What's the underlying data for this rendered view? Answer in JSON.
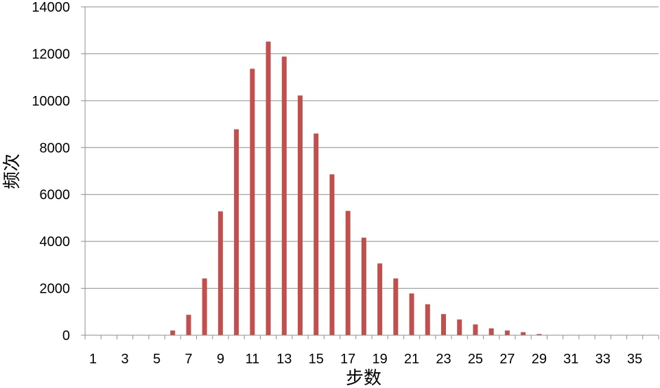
{
  "chart_data": {
    "type": "bar",
    "xlabel": "步数",
    "ylabel": "频次",
    "ylim": [
      0,
      14000
    ],
    "yticks": [
      0,
      2000,
      4000,
      6000,
      8000,
      10000,
      12000,
      14000
    ],
    "categories": [
      1,
      2,
      3,
      4,
      5,
      6,
      7,
      8,
      9,
      10,
      11,
      12,
      13,
      14,
      15,
      16,
      17,
      18,
      19,
      20,
      21,
      22,
      23,
      24,
      25,
      26,
      27,
      28,
      29,
      30,
      31,
      32,
      33,
      34,
      35,
      36
    ],
    "xtick_labels": [
      "1",
      "3",
      "5",
      "7",
      "9",
      "11",
      "13",
      "15",
      "17",
      "19",
      "21",
      "23",
      "25",
      "27",
      "29",
      "31",
      "33",
      "35"
    ],
    "values": [
      0,
      0,
      0,
      0,
      0,
      200,
      870,
      2420,
      5280,
      8780,
      11360,
      12520,
      11880,
      10220,
      8600,
      6860,
      5300,
      4160,
      3060,
      2420,
      1780,
      1320,
      900,
      670,
      460,
      290,
      200,
      130,
      50,
      15,
      5,
      0,
      0,
      0,
      0,
      0
    ],
    "bar_color": "#c0504d",
    "grid": true
  }
}
